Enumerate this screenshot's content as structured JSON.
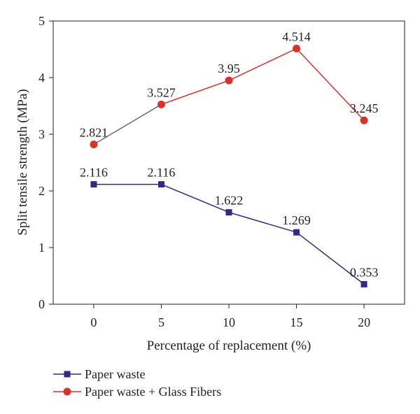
{
  "chart_data": {
    "type": "line",
    "xlabel": "Percentage of replacement (%)",
    "ylabel": "Split tensile strength (MPa)",
    "x": [
      0,
      5,
      10,
      15,
      20
    ],
    "xticks": [
      "0",
      "5",
      "10",
      "15",
      "20"
    ],
    "xlim": [
      -3,
      23
    ],
    "ylim": [
      0,
      5
    ],
    "yticks": [
      "0",
      "1",
      "2",
      "3",
      "4",
      "5"
    ],
    "grid": false,
    "legend_position": "bottom-left, below plot",
    "series": [
      {
        "name": "Paper waste",
        "values": [
          2.116,
          2.116,
          1.622,
          1.269,
          0.353
        ],
        "labels": [
          "2.116",
          "2.116",
          "1.622",
          "1.269",
          "0.353"
        ],
        "color": "#2e2a87",
        "marker": "square"
      },
      {
        "name": "Paper waste + Glass Fibers",
        "values": [
          2.821,
          3.527,
          3.95,
          4.514,
          3.245
        ],
        "labels": [
          "2.821",
          "3.527",
          "3.95",
          "4.514",
          "3.245"
        ],
        "color": "#d7322b",
        "first_segment_color": "#6d6e71",
        "marker": "circle"
      }
    ]
  }
}
